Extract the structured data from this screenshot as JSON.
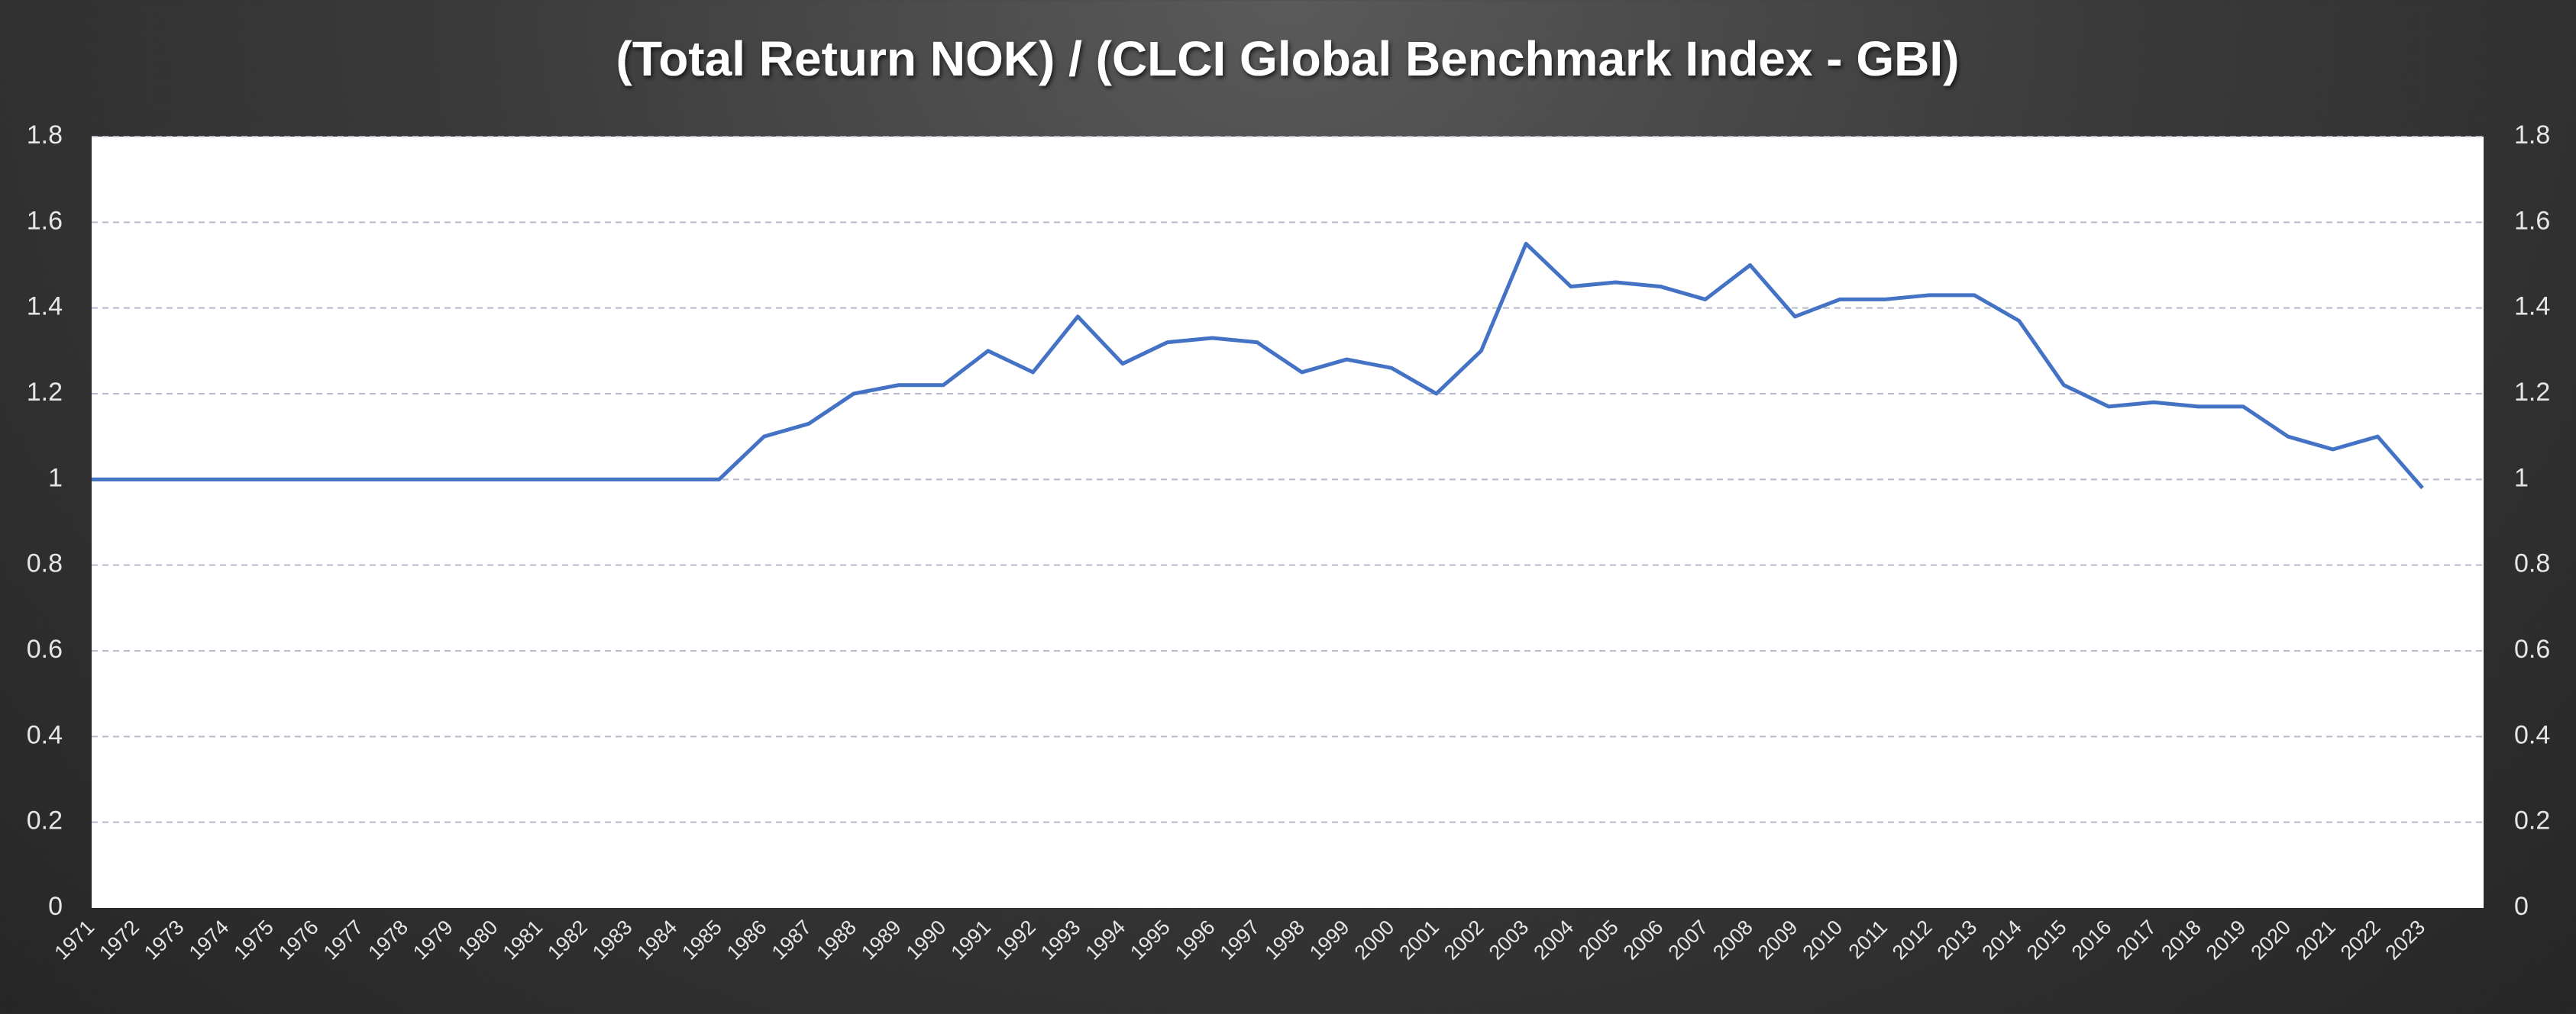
{
  "chart_data": {
    "type": "line",
    "title": "(Total Return NOK) / (CLCI Global Benchmark Index - GBI)",
    "x": [
      1971,
      1972,
      1973,
      1974,
      1975,
      1976,
      1977,
      1978,
      1979,
      1980,
      1981,
      1982,
      1983,
      1984,
      1985,
      1986,
      1987,
      1988,
      1989,
      1990,
      1991,
      1992,
      1993,
      1994,
      1995,
      1996,
      1997,
      1998,
      1999,
      2000,
      2001,
      2002,
      2003,
      2004,
      2005,
      2006,
      2007,
      2008,
      2009,
      2010,
      2011,
      2012,
      2013,
      2014,
      2015,
      2016,
      2017,
      2018,
      2019,
      2020,
      2021,
      2022,
      2023
    ],
    "series": [
      {
        "name": "(Total Return NOK) / (CLCI Global Benchmark Index - GBI)",
        "color": "#4472c4",
        "values": [
          1,
          1,
          1,
          1,
          1,
          1,
          1,
          1,
          1,
          1,
          1,
          1,
          1,
          1,
          1,
          1.1,
          1.13,
          1.2,
          1.22,
          1.22,
          1.3,
          1.25,
          1.38,
          1.27,
          1.32,
          1.33,
          1.32,
          1.25,
          1.28,
          1.26,
          1.2,
          1.3,
          1.55,
          1.45,
          1.46,
          1.45,
          1.42,
          1.5,
          1.38,
          1.42,
          1.42,
          1.43,
          1.43,
          1.37,
          1.22,
          1.17,
          1.18,
          1.17,
          1.17,
          1.1,
          1.07,
          1.1,
          0.98
        ]
      }
    ],
    "xlim": [
      1971,
      2023
    ],
    "ylim": [
      0,
      1.8
    ],
    "yticks": [
      0,
      0.2,
      0.4,
      0.6,
      0.8,
      1,
      1.2,
      1.4,
      1.6,
      1.8
    ],
    "y2lim": [
      0,
      1.8
    ],
    "y2ticks": [
      0,
      0.2,
      0.4,
      0.6,
      0.8,
      1,
      1.2,
      1.4,
      1.6,
      1.8
    ],
    "grid": true
  }
}
